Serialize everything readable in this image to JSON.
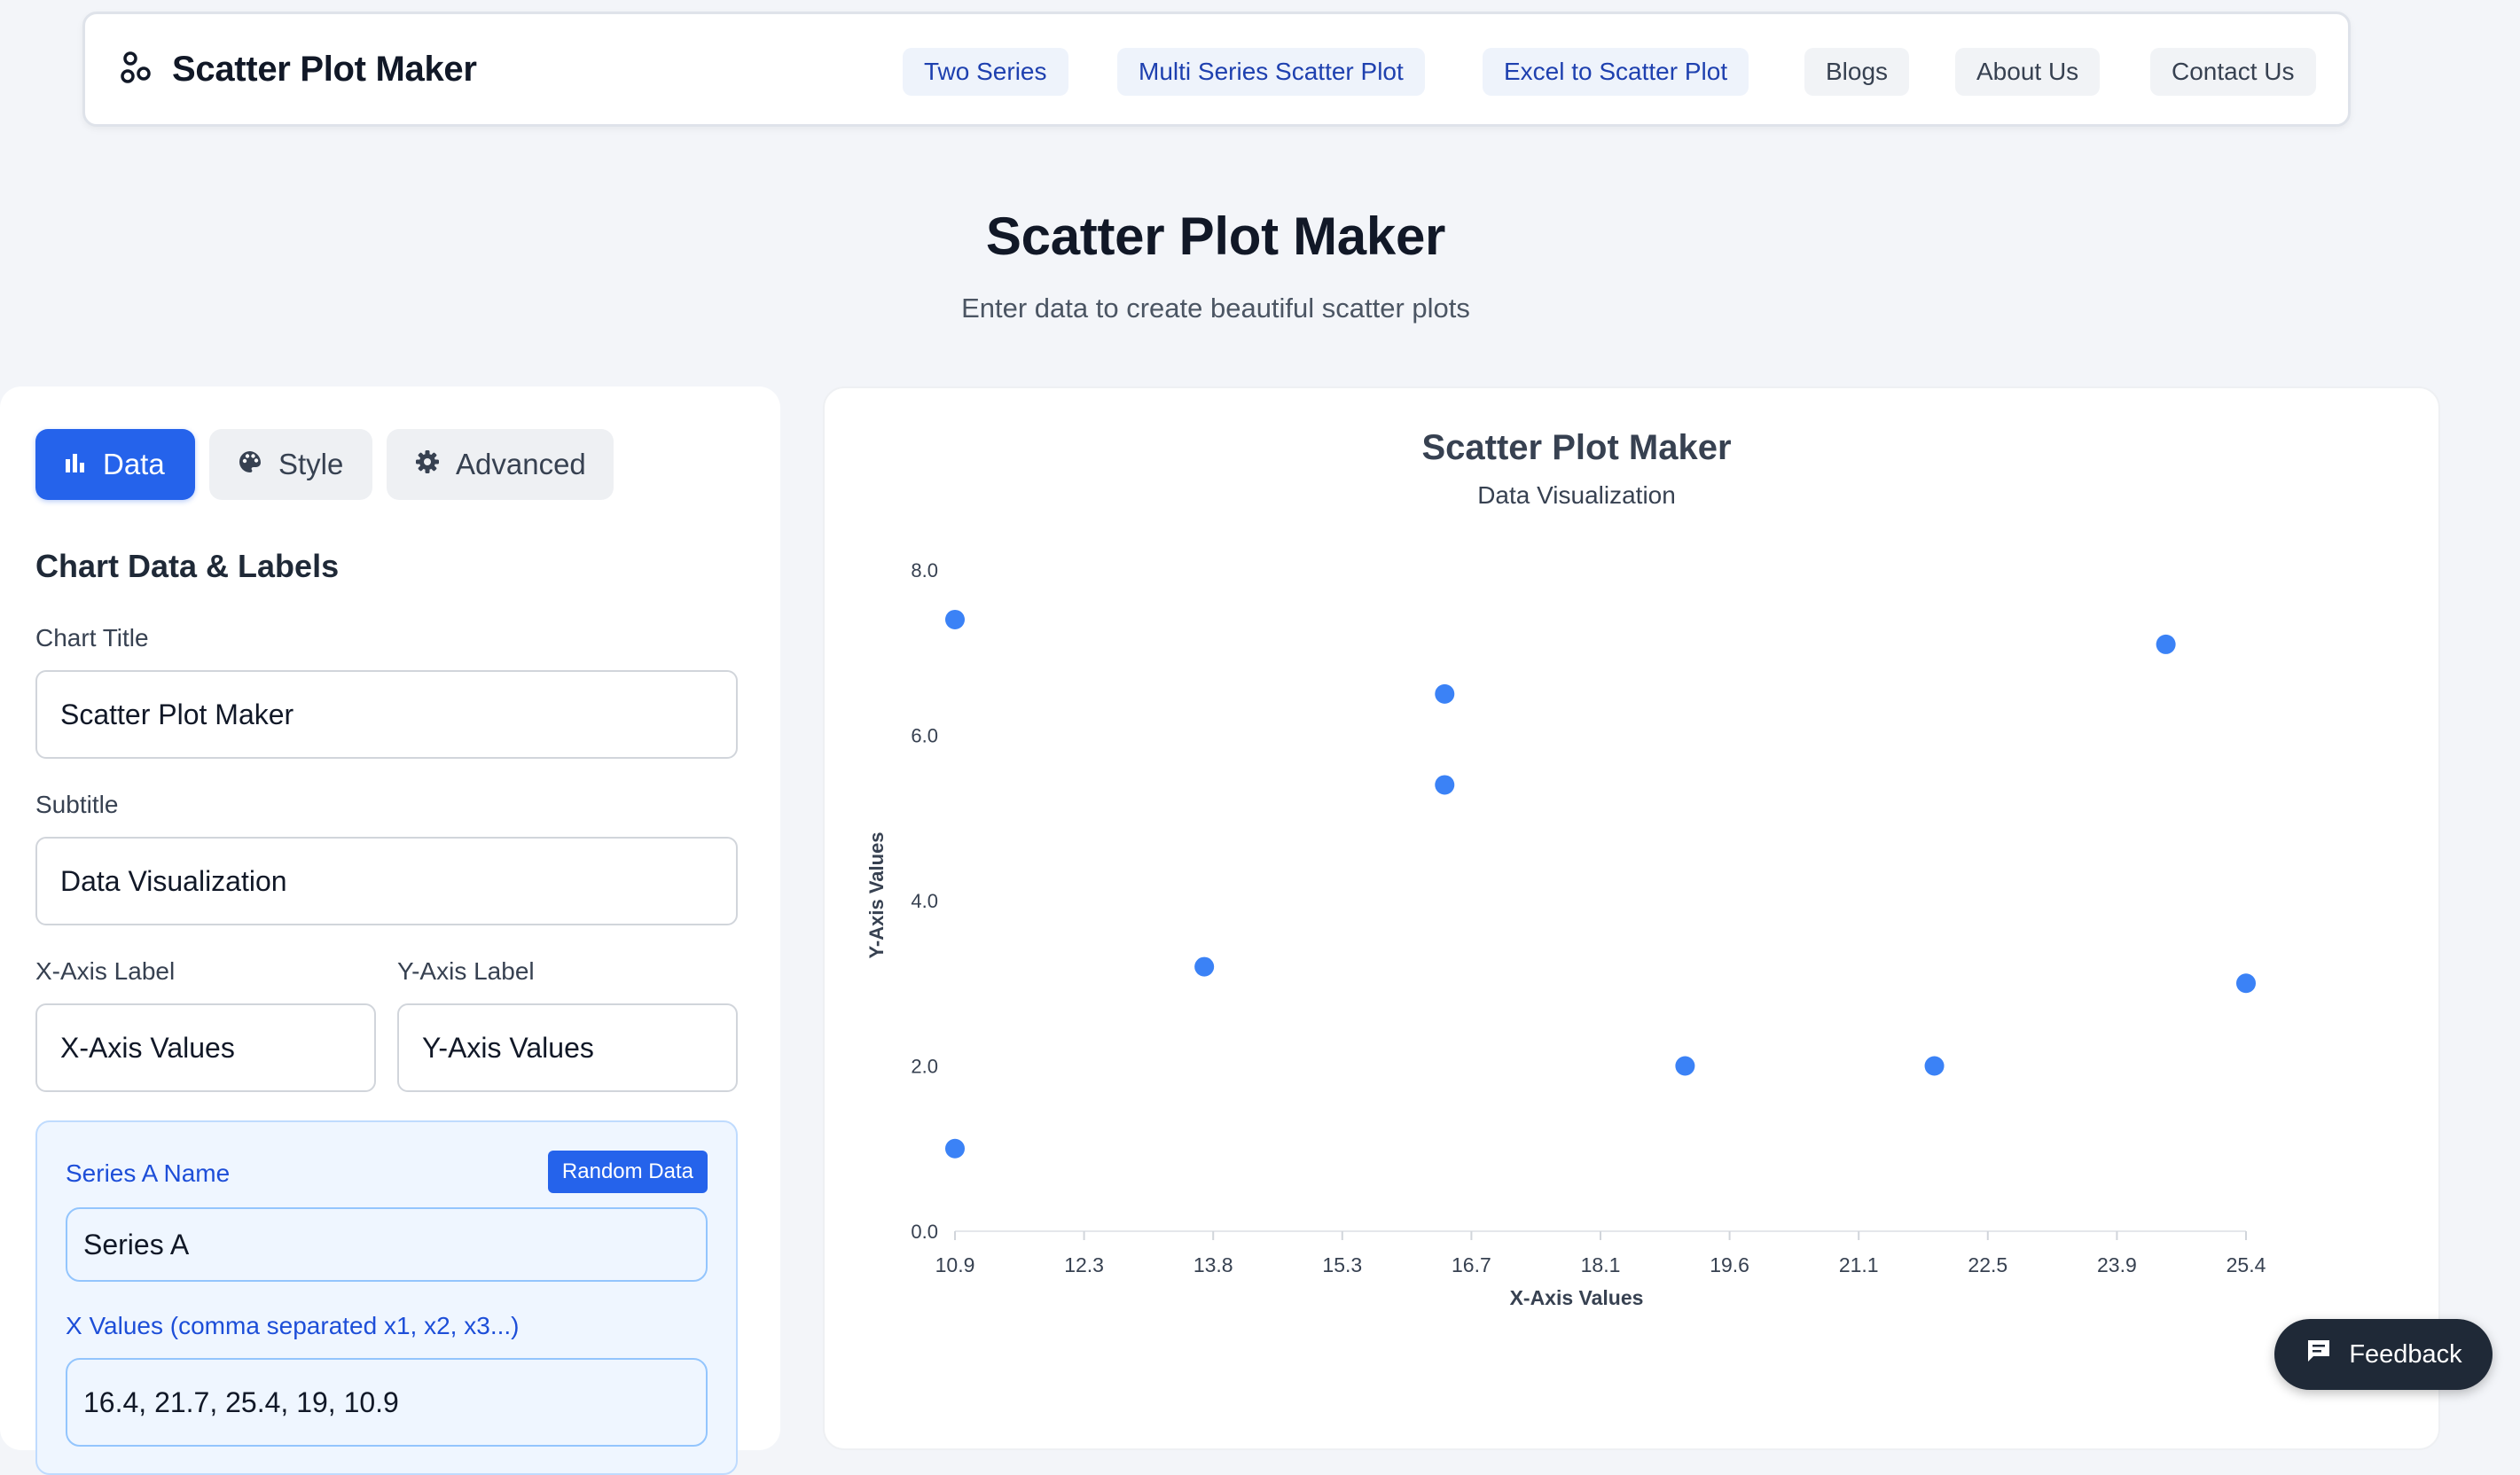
{
  "nav": {
    "brand": "Scatter Plot Maker",
    "links": [
      "Two Series",
      "Multi Series Scatter Plot",
      "Excel to Scatter Plot",
      "Blogs",
      "About Us",
      "Contact Us"
    ]
  },
  "hero": {
    "title": "Scatter Plot Maker",
    "subtitle": "Enter data to create beautiful scatter plots"
  },
  "tabs": [
    "Data",
    "Style",
    "Advanced"
  ],
  "form": {
    "section_title": "Chart Data & Labels",
    "chart_title_label": "Chart Title",
    "chart_title_value": "Scatter Plot Maker",
    "subtitle_label": "Subtitle",
    "subtitle_value": "Data Visualization",
    "x_label_label": "X-Axis Label",
    "x_label_value": "X-Axis Values",
    "y_label_label": "Y-Axis Label",
    "y_label_value": "Y-Axis Values",
    "series_name_label": "Series A Name",
    "random_button": "Random Data",
    "series_name_value": "Series A",
    "x_values_label": "X Values (comma separated x1, x2, x3...)",
    "x_values_value": "16.4, 21.7, 25.4, 19, 10.9"
  },
  "feedback_label": "Feedback",
  "colors": {
    "accent": "#2563eb",
    "point": "#3b82f6"
  },
  "chart_data": {
    "type": "scatter",
    "title": "Scatter Plot Maker",
    "subtitle": "Data Visualization",
    "xlabel": "X-Axis Values",
    "ylabel": "Y-Axis Values",
    "xlim": [
      10.9,
      25.4
    ],
    "ylim": [
      0,
      8
    ],
    "x_ticks": [
      "10.9",
      "12.3",
      "13.8",
      "15.3",
      "16.7",
      "18.1",
      "19.6",
      "21.1",
      "22.5",
      "23.9",
      "25.4"
    ],
    "y_ticks": [
      "0.0",
      "2.0",
      "4.0",
      "6.0",
      "8.0"
    ],
    "grid": false,
    "series": [
      {
        "color": "#3b82f6",
        "x": [
          10.9,
          10.9,
          13.7,
          16.4,
          16.4,
          19.1,
          21.9,
          24.5,
          25.4
        ],
        "y": [
          7.4,
          1.0,
          3.2,
          6.5,
          5.4,
          2.0,
          2.0,
          7.1,
          3.0
        ]
      }
    ]
  }
}
